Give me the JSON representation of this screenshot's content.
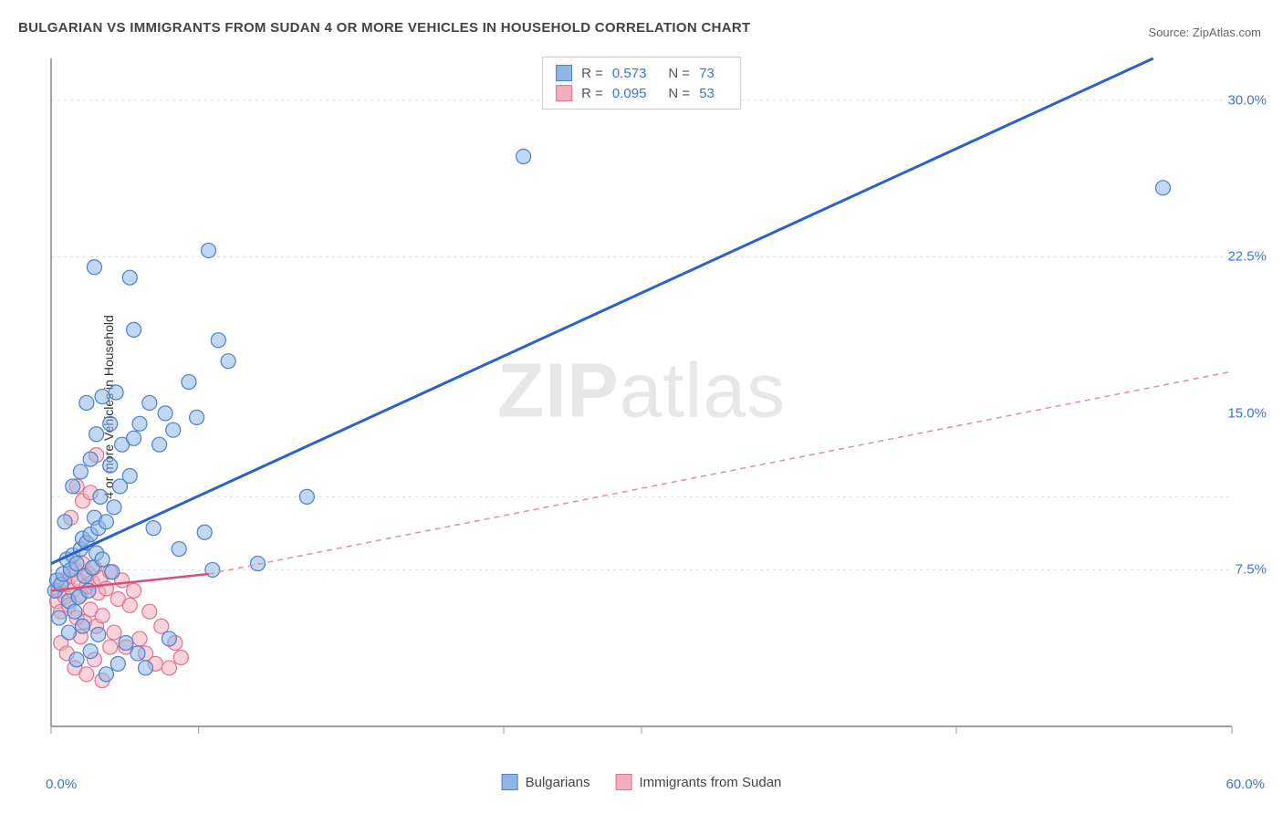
{
  "title": "BULGARIAN VS IMMIGRANTS FROM SUDAN 4 OR MORE VEHICLES IN HOUSEHOLD CORRELATION CHART",
  "source": "Source: ZipAtlas.com",
  "ylabel": "4 or more Vehicles in Household",
  "watermark_zip": "ZIP",
  "watermark_atlas": "atlas",
  "chart": {
    "type": "scatter",
    "background_color": "#ffffff",
    "grid_color": "#dddddd",
    "axis_line_color": "#666666",
    "tick_color": "#999999",
    "xlim": [
      0.0,
      60.0
    ],
    "ylim": [
      0.0,
      32.0
    ],
    "xticks": [
      0.0,
      7.5,
      23.0,
      30.0,
      46.0,
      60.0
    ],
    "yticks": [
      7.5,
      11.0,
      22.5,
      30.0
    ],
    "ytick_labels": [
      "7.5%",
      "",
      "22.5%",
      "30.0%"
    ],
    "ytick_extra": {
      "value": 15.0,
      "label": "15.0%"
    },
    "x_min_label": "0.0%",
    "x_max_label": "60.0%",
    "label_color": "#3b74d1",
    "label_fontsize": 15,
    "marker_radius": 8,
    "marker_stroke_width": 1.2,
    "trend_line_width_a": 3,
    "trend_line_width_b": 1.5,
    "trend_dash_b": "6,5"
  },
  "series_a": {
    "name": "Bulgarians",
    "fill_color": "#90b6e8",
    "stroke_color": "#4b7fc9",
    "fill_opacity": 0.55,
    "R": "0.573",
    "N": "73",
    "trend": {
      "x1": 0.0,
      "y1": 7.8,
      "x2": 56.0,
      "y2": 32.0,
      "color": "#2a63c8"
    },
    "points": [
      [
        0.2,
        6.5
      ],
      [
        0.3,
        7.0
      ],
      [
        0.4,
        5.2
      ],
      [
        0.5,
        6.8
      ],
      [
        0.6,
        7.3
      ],
      [
        0.8,
        8.0
      ],
      [
        0.9,
        6.0
      ],
      [
        1.0,
        7.5
      ],
      [
        1.1,
        8.2
      ],
      [
        1.2,
        5.5
      ],
      [
        1.3,
        7.8
      ],
      [
        1.4,
        6.2
      ],
      [
        1.5,
        8.5
      ],
      [
        1.6,
        9.0
      ],
      [
        1.7,
        7.2
      ],
      [
        1.8,
        8.8
      ],
      [
        1.9,
        6.5
      ],
      [
        2.0,
        9.2
      ],
      [
        2.1,
        7.6
      ],
      [
        2.2,
        10.0
      ],
      [
        2.3,
        8.3
      ],
      [
        2.4,
        9.5
      ],
      [
        2.5,
        11.0
      ],
      [
        2.6,
        8.0
      ],
      [
        2.8,
        9.8
      ],
      [
        3.0,
        12.5
      ],
      [
        3.1,
        7.4
      ],
      [
        3.2,
        10.5
      ],
      [
        3.4,
        3.0
      ],
      [
        3.5,
        11.5
      ],
      [
        3.6,
        13.5
      ],
      [
        3.8,
        4.0
      ],
      [
        4.0,
        12.0
      ],
      [
        4.2,
        13.8
      ],
      [
        4.4,
        3.5
      ],
      [
        4.5,
        14.5
      ],
      [
        4.8,
        2.8
      ],
      [
        5.0,
        15.5
      ],
      [
        5.2,
        9.5
      ],
      [
        5.5,
        13.5
      ],
      [
        5.8,
        15.0
      ],
      [
        6.0,
        4.2
      ],
      [
        6.2,
        14.2
      ],
      [
        6.5,
        8.5
      ],
      [
        7.0,
        16.5
      ],
      [
        7.4,
        14.8
      ],
      [
        7.8,
        9.3
      ],
      [
        8.0,
        22.8
      ],
      [
        8.2,
        7.5
      ],
      [
        8.5,
        18.5
      ],
      [
        9.0,
        17.5
      ],
      [
        2.2,
        22.0
      ],
      [
        4.0,
        21.5
      ],
      [
        4.2,
        19.0
      ],
      [
        1.8,
        15.5
      ],
      [
        2.0,
        12.8
      ],
      [
        2.3,
        14.0
      ],
      [
        2.6,
        15.8
      ],
      [
        3.0,
        14.5
      ],
      [
        3.3,
        16.0
      ],
      [
        10.5,
        7.8
      ],
      [
        13.0,
        11.0
      ],
      [
        24.0,
        27.3
      ],
      [
        56.5,
        25.8
      ],
      [
        0.9,
        4.5
      ],
      [
        1.3,
        3.2
      ],
      [
        1.6,
        4.8
      ],
      [
        2.0,
        3.6
      ],
      [
        2.4,
        4.4
      ],
      [
        2.8,
        2.5
      ],
      [
        1.1,
        11.5
      ],
      [
        1.5,
        12.2
      ],
      [
        0.7,
        9.8
      ]
    ]
  },
  "series_b": {
    "name": "Immigrants from Sudan",
    "fill_color": "#f2aebe",
    "stroke_color": "#e2708f",
    "fill_opacity": 0.55,
    "R": "0.095",
    "N": "53",
    "trend_solid": {
      "x1": 0.0,
      "y1": 6.5,
      "x2": 8.0,
      "y2": 7.3,
      "color": "#d94e74"
    },
    "trend_dash": {
      "x1": 8.0,
      "y1": 7.3,
      "x2": 60.0,
      "y2": 17.0,
      "color": "#e68aa2"
    },
    "points": [
      [
        0.3,
        6.0
      ],
      [
        0.4,
        6.5
      ],
      [
        0.5,
        5.5
      ],
      [
        0.6,
        7.0
      ],
      [
        0.7,
        6.2
      ],
      [
        0.8,
        6.8
      ],
      [
        0.9,
        5.8
      ],
      [
        1.0,
        7.2
      ],
      [
        1.1,
        6.5
      ],
      [
        1.2,
        7.5
      ],
      [
        1.3,
        5.2
      ],
      [
        1.4,
        7.0
      ],
      [
        1.5,
        6.3
      ],
      [
        1.6,
        7.8
      ],
      [
        1.7,
        5.0
      ],
      [
        1.8,
        6.7
      ],
      [
        1.9,
        7.3
      ],
      [
        2.0,
        5.6
      ],
      [
        2.1,
        6.9
      ],
      [
        2.2,
        7.6
      ],
      [
        2.3,
        4.8
      ],
      [
        2.4,
        6.4
      ],
      [
        2.5,
        7.1
      ],
      [
        2.6,
        5.3
      ],
      [
        2.8,
        6.6
      ],
      [
        3.0,
        7.4
      ],
      [
        3.2,
        4.5
      ],
      [
        3.4,
        6.1
      ],
      [
        3.6,
        7.0
      ],
      [
        3.8,
        3.8
      ],
      [
        4.0,
        5.8
      ],
      [
        4.2,
        6.5
      ],
      [
        4.5,
        4.2
      ],
      [
        4.8,
        3.5
      ],
      [
        5.0,
        5.5
      ],
      [
        5.3,
        3.0
      ],
      [
        5.6,
        4.8
      ],
      [
        6.0,
        2.8
      ],
      [
        6.3,
        4.0
      ],
      [
        6.6,
        3.3
      ],
      [
        1.0,
        10.0
      ],
      [
        1.3,
        11.5
      ],
      [
        1.6,
        10.8
      ],
      [
        2.0,
        11.2
      ],
      [
        2.3,
        13.0
      ],
      [
        0.5,
        4.0
      ],
      [
        0.8,
        3.5
      ],
      [
        1.2,
        2.8
      ],
      [
        1.5,
        4.3
      ],
      [
        1.8,
        2.5
      ],
      [
        2.2,
        3.2
      ],
      [
        2.6,
        2.2
      ],
      [
        3.0,
        3.8
      ]
    ]
  },
  "legend_top": {
    "r_label": "R  =",
    "n_label": "N  ="
  },
  "legend_bottom": {
    "a_label": "Bulgarians",
    "b_label": "Immigrants from Sudan"
  }
}
